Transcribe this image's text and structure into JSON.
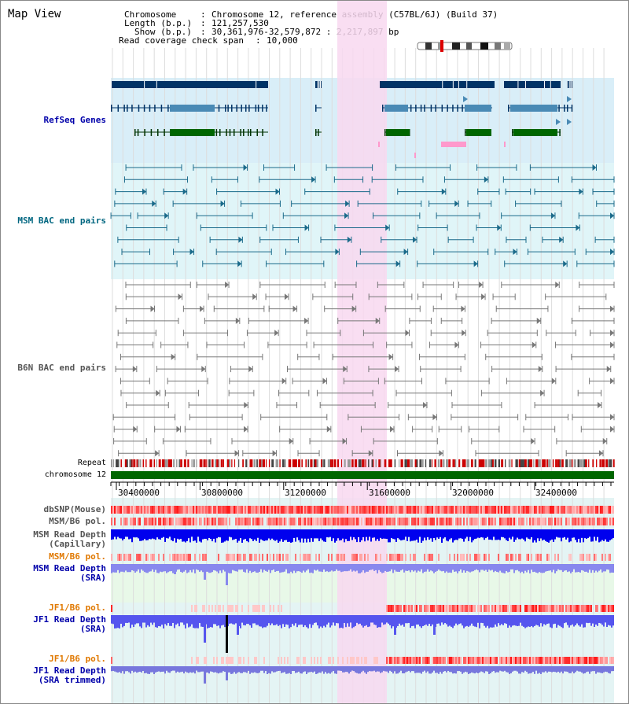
{
  "title": "Map View",
  "header": {
    "chromosome_label": "Chromosome",
    "chromosome_value": "Chromosome 12, reference assembly (C57BL/6J) (Build 37)",
    "length_label": "Length (b.p.)",
    "length_value": "121,257,530",
    "show_label": "Show (b.p.)",
    "show_value": "30,361,976-32,579,872 : 2,217,897 bp",
    "coverage_label": "Read coverage check span",
    "coverage_value": "10,000"
  },
  "tracks": {
    "refseq": "RefSeq Genes",
    "msm_bac": "MSM BAC end pairs",
    "b6n_bac": "B6N BAC end pairs",
    "repeat": "Repeat",
    "chromosome": "chromosome 12",
    "dbsnp": "dbSNP(Mouse)",
    "msm_b6_pol": "MSM/B6 pol.",
    "msm_depth_cap_1": "MSM Read Depth",
    "msm_depth_cap_2": "(Capillary)",
    "msm_b6_pol2": "MSM/B6 pol.",
    "msm_depth_sra_1": "MSM Read Depth",
    "msm_depth_sra_2": "(SRA)",
    "jf1_b6_pol": "JF1/B6 pol.",
    "jf1_depth_sra_1": "JF1 Read Depth",
    "jf1_depth_sra_2": "(SRA)",
    "jf1_b6_pol2": "JF1/B6 pol.",
    "jf1_depth_trim_1": "JF1 Read Depth",
    "jf1_depth_trim_2": "(SRA trimmed)"
  },
  "axis": {
    "ticks": [
      "30400000",
      "30800000",
      "31200000",
      "31600000",
      "32000000",
      "32400000"
    ]
  },
  "colors": {
    "refseq_bg": "#d9eef8",
    "msm_bac_bg": "#e0f5f8",
    "highlight": "#f8d8f0",
    "dark_navy": "#003366",
    "steel_blue": "#4a8ab5",
    "green": "#006600",
    "teal": "#1a6a8a",
    "gray": "#777777",
    "label_blue": "#0000aa",
    "label_teal": "#006680",
    "label_gray": "#555555",
    "label_orange": "#e07800"
  }
}
